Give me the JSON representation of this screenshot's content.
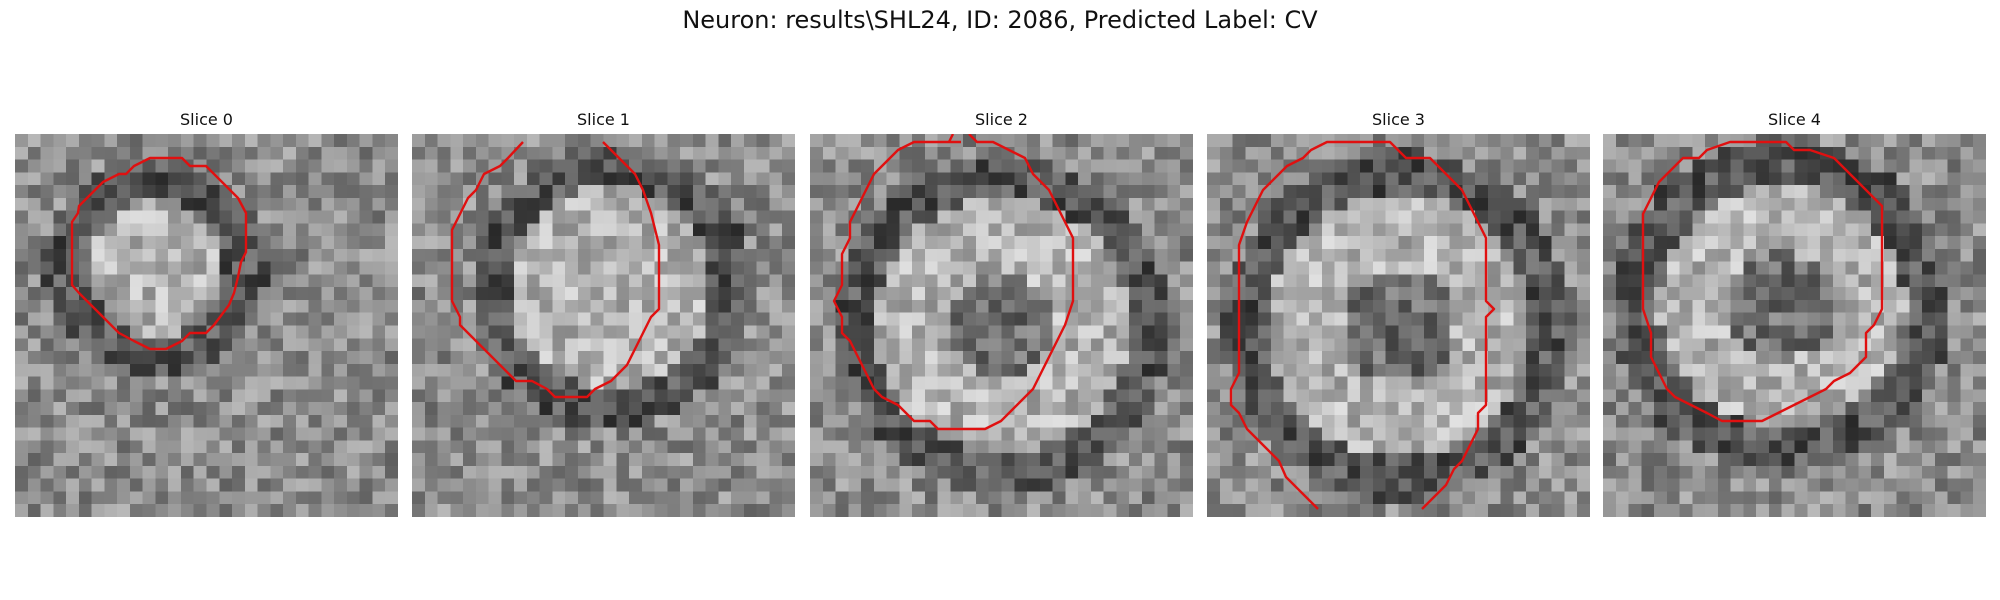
{
  "figure": {
    "title": "Neuron: results\\SHL24, ID: 2086, Predicted Label: CV"
  },
  "contour_color": "#e01010",
  "panels": [
    {
      "label": "Slice 0",
      "icon": "grayscale-microscopy-slice"
    },
    {
      "label": "Slice 1",
      "icon": "grayscale-microscopy-slice"
    },
    {
      "label": "Slice 2",
      "icon": "grayscale-microscopy-slice"
    },
    {
      "label": "Slice 3",
      "icon": "grayscale-microscopy-slice"
    },
    {
      "label": "Slice 4",
      "icon": "grayscale-microscopy-slice"
    }
  ]
}
